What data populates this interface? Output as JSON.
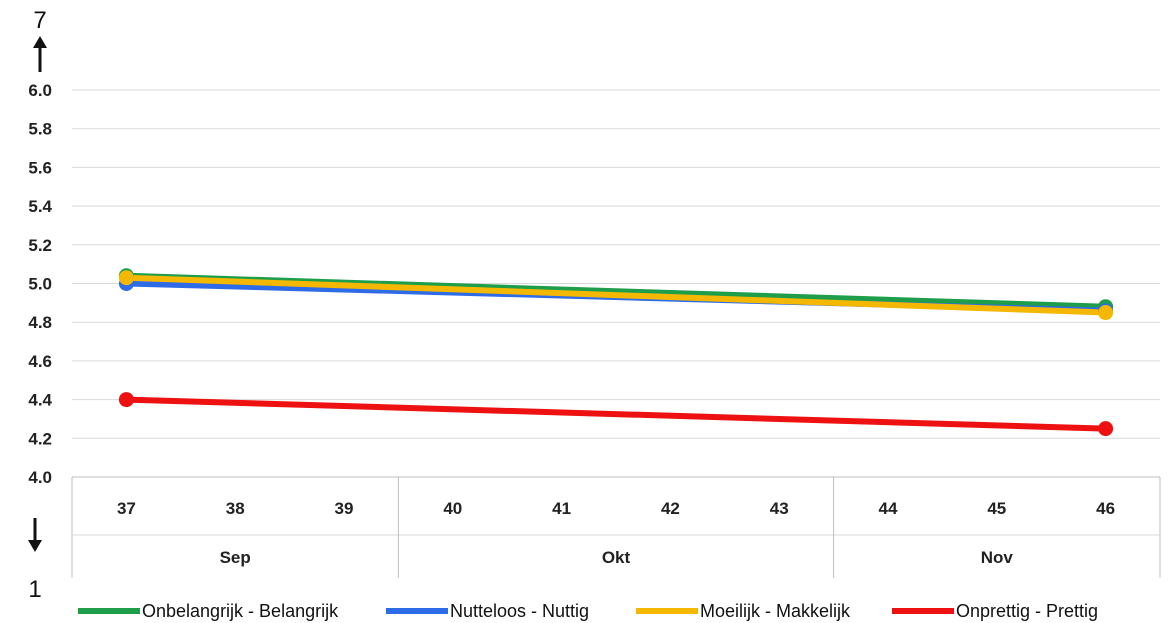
{
  "chart_data": {
    "type": "line",
    "title": "",
    "xlabel": "",
    "ylabel": "",
    "ylim": [
      4.0,
      6.0
    ],
    "yticks": [
      "6.0",
      "5.8",
      "5.6",
      "5.4",
      "5.2",
      "5.0",
      "4.8",
      "4.6",
      "4.4",
      "4.2",
      "4.0"
    ],
    "categories": [
      "37",
      "38",
      "39",
      "40",
      "41",
      "42",
      "43",
      "44",
      "45",
      "46"
    ],
    "groups": [
      {
        "label": "Sep",
        "span": 3
      },
      {
        "label": "Okt",
        "span": 4
      },
      {
        "label": "Nov",
        "span": 3
      }
    ],
    "scale_max_label": "7",
    "scale_min_label": "1",
    "grid": true,
    "legend_position": "bottom",
    "series": [
      {
        "name": "Onbelangrijk - Belangrijk",
        "color": "#1e9e4a",
        "values": [
          5.04,
          null,
          null,
          null,
          null,
          null,
          null,
          null,
          null,
          4.88
        ]
      },
      {
        "name": "Nutteloos - Nuttig",
        "color": "#2e6be6",
        "values": [
          5.0,
          null,
          null,
          null,
          null,
          null,
          null,
          null,
          null,
          4.86
        ]
      },
      {
        "name": "Moeilijk - Makkelijk",
        "color": "#f5b800",
        "values": [
          5.03,
          null,
          null,
          null,
          null,
          null,
          null,
          null,
          null,
          4.85
        ]
      },
      {
        "name": "Onprettig - Prettig",
        "color": "#ee1111",
        "values": [
          4.4,
          null,
          null,
          null,
          null,
          null,
          null,
          null,
          null,
          4.25
        ]
      }
    ]
  }
}
